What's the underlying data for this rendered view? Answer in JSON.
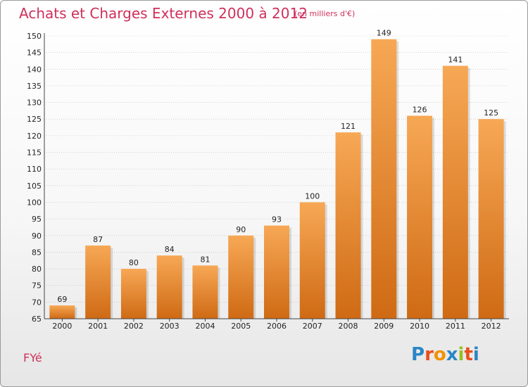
{
  "header": {
    "title": "Achats et Charges Externes 2000 à 2012",
    "subtitle": "(en milliers d'€)"
  },
  "footer": {
    "commune": "FYé",
    "logo_letters": [
      "P",
      "r",
      "o",
      "x",
      "i",
      "t",
      "i"
    ],
    "logo_colors": [
      "#2b86c5",
      "#e94e1b",
      "#f39200",
      "#2b86c5",
      "#95c11f",
      "#e94e1b",
      "#2b86c5"
    ]
  },
  "colors": {
    "bar_light": "#f7a855",
    "bar_dark": "#cf6a14",
    "title": "#d0305a",
    "grid": "#bcbcbc"
  },
  "chart_data": {
    "type": "bar",
    "title": "Achats et Charges Externes 2000 à 2012",
    "subtitle": "(en milliers d'€)",
    "categories": [
      "2000",
      "2001",
      "2002",
      "2003",
      "2004",
      "2005",
      "2006",
      "2007",
      "2008",
      "2009",
      "2010",
      "2011",
      "2012"
    ],
    "values": [
      69,
      87,
      80,
      84,
      81,
      90,
      93,
      100,
      121,
      149,
      126,
      141,
      125
    ],
    "ylim": [
      65,
      150
    ],
    "yticks": [
      65,
      70,
      75,
      80,
      85,
      90,
      95,
      100,
      105,
      110,
      115,
      120,
      125,
      130,
      135,
      140,
      145,
      150
    ],
    "grid": "horizontal",
    "xlabel": "",
    "ylabel": ""
  }
}
